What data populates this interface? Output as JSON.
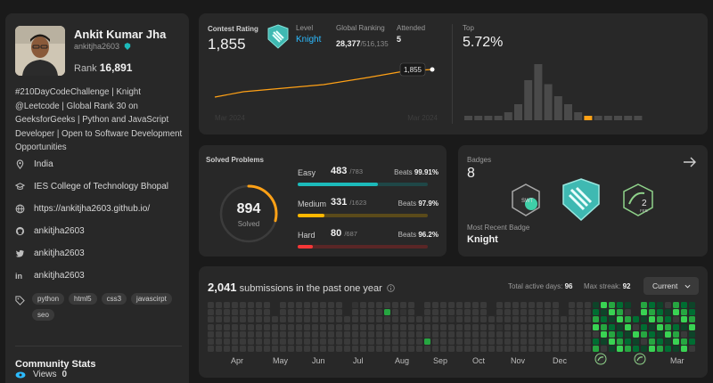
{
  "profile": {
    "name": "Ankit Kumar Jha",
    "username": "ankitjha2603",
    "rank_label": "Rank",
    "rank_value": "16,891",
    "bio": "#210DayCodeChallenge | Knight @Leetcode | Global Rank 30 on GeeksforGeeks | Python and JavaScript Developer | Open to Software Development Opportunities",
    "location": "India",
    "college": "IES College of Technology Bhopal",
    "website": "https://ankitjha2603.github.io/",
    "github": "ankitjha2603",
    "twitter": "ankitjha2603",
    "linkedin": "ankitjha2603",
    "tags": [
      "python",
      "html5",
      "css3",
      "javascirpt",
      "seo"
    ],
    "community_title": "Community Stats",
    "views_label": "Views",
    "views_value": "0"
  },
  "contest": {
    "rating_label": "Contest Rating",
    "rating_value": "1,855",
    "level_label": "Level",
    "level_value": "Knight",
    "global_label": "Global Ranking",
    "global_value": "28,377",
    "global_total": "/516,135",
    "attended_label": "Attended",
    "attended_value": "5",
    "point_label": "1,855",
    "x_start": "Mar 2024",
    "x_end": "Mar 2024",
    "top_label": "Top",
    "top_value": "5.72%",
    "histogram": [
      1,
      1,
      1,
      1,
      2,
      4,
      10,
      14,
      9,
      6,
      4,
      2,
      1,
      1,
      1,
      1,
      1,
      1
    ],
    "highlight_index": 12
  },
  "solved": {
    "title": "Solved Problems",
    "total": "894",
    "total_label": "Solved",
    "ring_fraction": 0.29,
    "rows": [
      {
        "name": "Easy",
        "count": "483",
        "of": "/783",
        "beats_label": "Beats",
        "beats": "99.91%",
        "fraction": 0.617,
        "color": "#1cbaba",
        "track": "#1f4747"
      },
      {
        "name": "Medium",
        "count": "331",
        "of": "/1623",
        "beats_label": "Beats",
        "beats": "97.9%",
        "fraction": 0.204,
        "color": "#ffb700",
        "track": "#5a4a1a"
      },
      {
        "name": "Hard",
        "count": "80",
        "of": "/687",
        "beats_label": "Beats",
        "beats": "96.2%",
        "fraction": 0.116,
        "color": "#f63737",
        "track": "#5a2626"
      }
    ]
  },
  "badges": {
    "label": "Badges",
    "count": "8",
    "recent_label": "Most Recent Badge",
    "recent_value": "Knight",
    "badge1_text": "SWT",
    "badge3_text": "2",
    "badge3_sub": "FEB"
  },
  "submissions": {
    "count": "2,041",
    "label": "submissions in the past one year",
    "active_label": "Total active days:",
    "active_value": "96",
    "streak_label": "Max streak:",
    "streak_value": "92",
    "dropdown": "Current",
    "months": [
      "Apr",
      "May",
      "Jun",
      "Jul",
      "Aug",
      "Sep",
      "Oct",
      "Nov",
      "Dec",
      "Mar"
    ]
  },
  "colors": {
    "accent_orange": "#ffa116",
    "knight_blue": "#2cbbff",
    "green": "#2cbb5d"
  }
}
